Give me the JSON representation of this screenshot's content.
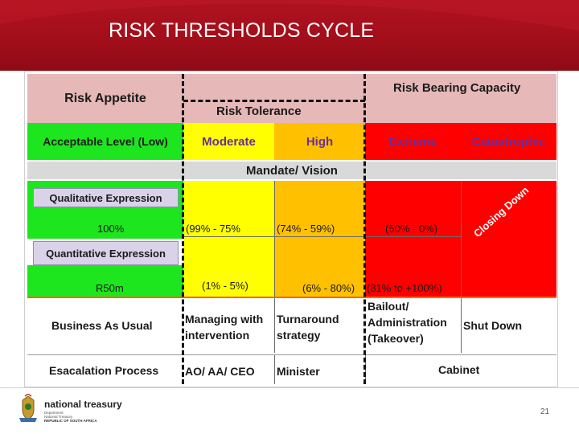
{
  "slide": {
    "title": "RISK THRESHOLDS CYCLE",
    "page_number": "21"
  },
  "header": {
    "risk_appetite": "Risk Appetite",
    "risk_bearing_capacity": "Risk Bearing Capacity",
    "risk_tolerance": "Risk Tolerance"
  },
  "levels": {
    "acceptable": "Acceptable Level (Low)",
    "moderate": "Moderate",
    "high": "High",
    "extreme": "Extreme",
    "catastrophic": "Catastrophic"
  },
  "mandate": "Mandate/ Vision",
  "expressions": {
    "qualitative_label": "Qualitative Expression",
    "quantitative_label": "Quantitative Expression",
    "qual_low": "100%",
    "qual_moderate": "(99% - 75%",
    "qual_high": "(74% - 59%)",
    "qual_extreme": "(50% - 0%)",
    "quant_low": "R50m",
    "quant_moderate": "(1% - 5%)",
    "quant_high": "(6% - 80%)",
    "quant_extreme": "(81% to +100%)",
    "closing_down": "Closing Down"
  },
  "business": {
    "label": "Business As Usual",
    "moderate": [
      "Managing with",
      "intervention"
    ],
    "high": [
      "Turnaround",
      "strategy"
    ],
    "extreme": [
      "Bailout/",
      "Administration",
      "(Takeover)"
    ],
    "catastrophic": "Shut Down"
  },
  "escalation": {
    "label": "Esacalation Process",
    "moderate": "AO/ AA/ CEO",
    "high": "Minister",
    "extreme": "Cabinet"
  },
  "footer": {
    "org_name": "national treasury",
    "org_lines": [
      "Department:",
      "National Treasury",
      "REPUBLIC OF SOUTH AFRICA"
    ]
  },
  "colors": {
    "banner": "#a10e1a",
    "low": "#1ee61e",
    "moderate": "#ffff00",
    "high": "#ffc000",
    "extreme": "#ff0000",
    "header": "#e6b8b8"
  },
  "icons": [
    "coat-of-arms-icon"
  ]
}
